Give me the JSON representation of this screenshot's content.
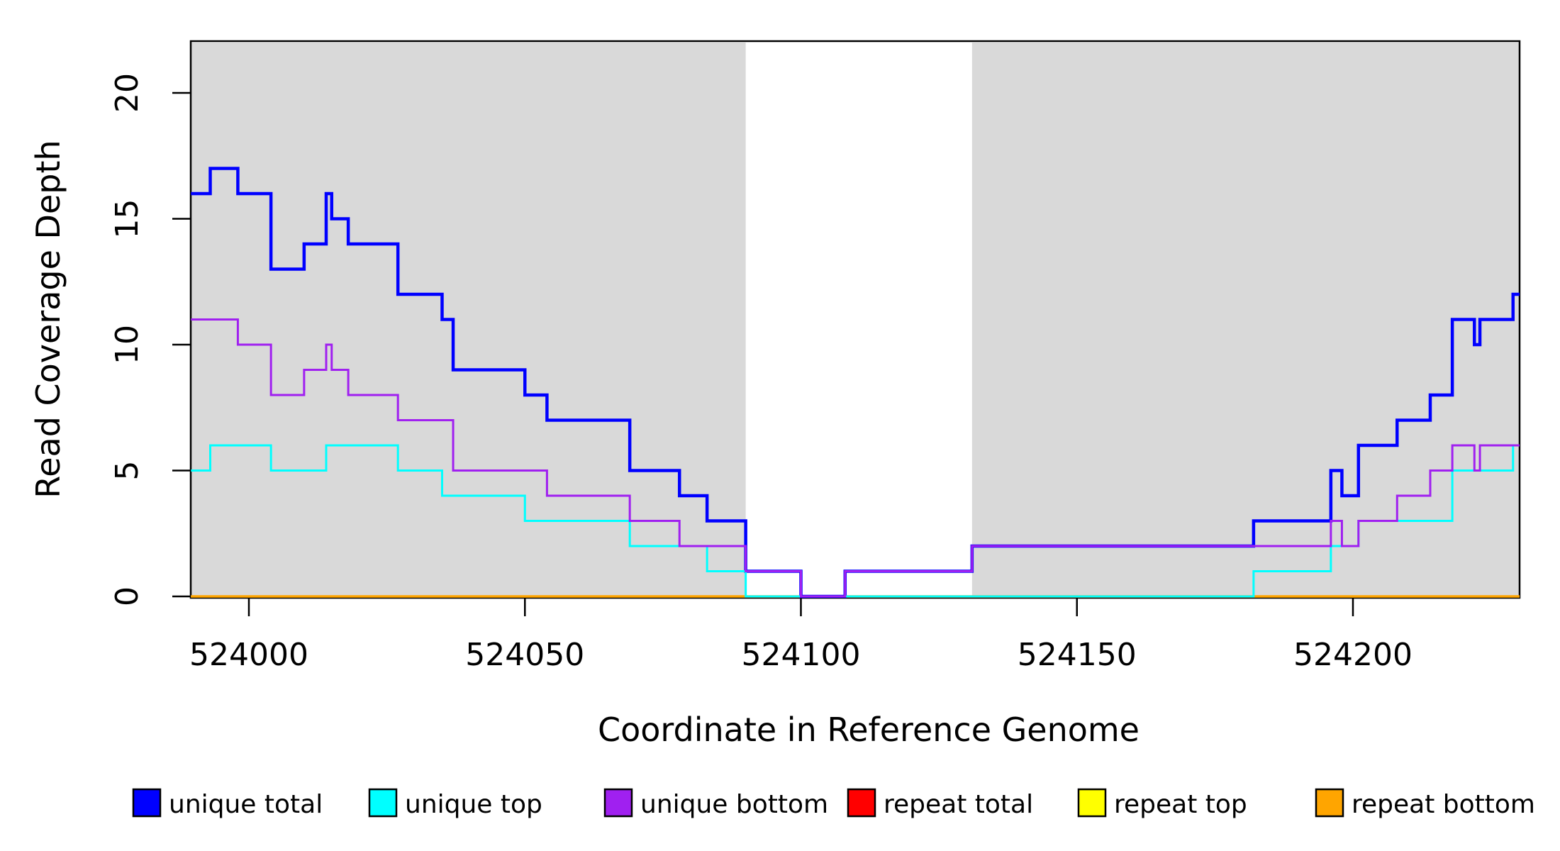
{
  "chart_data": {
    "type": "line",
    "subtype": "step-coverage",
    "title": "",
    "xlabel": "Coordinate in Reference Genome",
    "ylabel": "Read Coverage Depth",
    "xlim": [
      523989.5,
      524230.2
    ],
    "ylim": [
      0,
      22
    ],
    "x_ticks": [
      524000,
      524050,
      524100,
      524150,
      524200
    ],
    "y_ticks": [
      0,
      5,
      10,
      15,
      20
    ],
    "grid": false,
    "plot_bg": "#FFFFFF",
    "box_color": "#000000",
    "shaded_regions": [
      {
        "name": "covered-region-left",
        "from": 523989.5,
        "to": 524090,
        "color": "#D9D9D9"
      },
      {
        "name": "covered-region-right",
        "from": 524131,
        "to": 524230.2,
        "color": "#D9D9D9"
      }
    ],
    "series": [
      {
        "name": "repeat total",
        "color": "#FF0000",
        "width": 3,
        "steps": [
          [
            523989.5,
            0
          ]
        ]
      },
      {
        "name": "repeat top",
        "color": "#FFFF00",
        "width": 3,
        "steps": [
          [
            523989.5,
            0
          ]
        ]
      },
      {
        "name": "repeat bottom",
        "color": "#FFA500",
        "width": 3.5,
        "steps": [
          [
            523989.5,
            0
          ]
        ]
      },
      {
        "name": "unique total",
        "color": "#0000FF",
        "width": 4.5,
        "steps": [
          [
            523989.5,
            16
          ],
          [
            523993,
            17
          ],
          [
            523998,
            16
          ],
          [
            524004,
            13
          ],
          [
            524010,
            14
          ],
          [
            524014,
            16
          ],
          [
            524015,
            15
          ],
          [
            524018,
            14
          ],
          [
            524027,
            12
          ],
          [
            524035,
            11
          ],
          [
            524037,
            9
          ],
          [
            524050,
            8
          ],
          [
            524054,
            7
          ],
          [
            524069,
            5
          ],
          [
            524078,
            4
          ],
          [
            524083,
            3
          ],
          [
            524090,
            1
          ],
          [
            524100,
            0
          ],
          [
            524108,
            1
          ],
          [
            524131,
            2
          ],
          [
            524182,
            3
          ],
          [
            524196,
            5
          ],
          [
            524198,
            4
          ],
          [
            524201,
            6
          ],
          [
            524208,
            7
          ],
          [
            524214,
            8
          ],
          [
            524218,
            11
          ],
          [
            524222,
            10
          ],
          [
            524223,
            11
          ],
          [
            524229,
            12
          ]
        ]
      },
      {
        "name": "unique top",
        "color": "#00FFFF",
        "width": 3,
        "steps": [
          [
            523989.5,
            5
          ],
          [
            523993,
            6
          ],
          [
            524004,
            5
          ],
          [
            524014,
            6
          ],
          [
            524027,
            5
          ],
          [
            524035,
            4
          ],
          [
            524050,
            3
          ],
          [
            524069,
            2
          ],
          [
            524083,
            1
          ],
          [
            524090,
            0
          ],
          [
            524182,
            1
          ],
          [
            524196,
            2
          ],
          [
            524201,
            3
          ],
          [
            524218,
            5
          ],
          [
            524229,
            6
          ]
        ]
      },
      {
        "name": "unique bottom",
        "color": "#A020F0",
        "width": 3,
        "steps": [
          [
            523989.5,
            11
          ],
          [
            523998,
            10
          ],
          [
            524004,
            8
          ],
          [
            524010,
            9
          ],
          [
            524014,
            10
          ],
          [
            524015,
            9
          ],
          [
            524018,
            8
          ],
          [
            524027,
            7
          ],
          [
            524037,
            5
          ],
          [
            524054,
            4
          ],
          [
            524069,
            3
          ],
          [
            524078,
            2
          ],
          [
            524090,
            1
          ],
          [
            524100,
            0
          ],
          [
            524108,
            1
          ],
          [
            524131,
            2
          ],
          [
            524196,
            3
          ],
          [
            524198,
            2
          ],
          [
            524201,
            3
          ],
          [
            524208,
            4
          ],
          [
            524214,
            5
          ],
          [
            524218,
            6
          ],
          [
            524222,
            5
          ],
          [
            524223,
            6
          ]
        ]
      }
    ],
    "legend": {
      "position": "bottom",
      "items": [
        {
          "label": "unique total",
          "color": "#0000FF"
        },
        {
          "label": "unique top",
          "color": "#00FFFF"
        },
        {
          "label": "unique bottom",
          "color": "#A020F0"
        },
        {
          "label": "repeat total",
          "color": "#FF0000"
        },
        {
          "label": "repeat top",
          "color": "#FFFF00"
        },
        {
          "label": "repeat bottom",
          "color": "#FFA500"
        }
      ]
    }
  }
}
